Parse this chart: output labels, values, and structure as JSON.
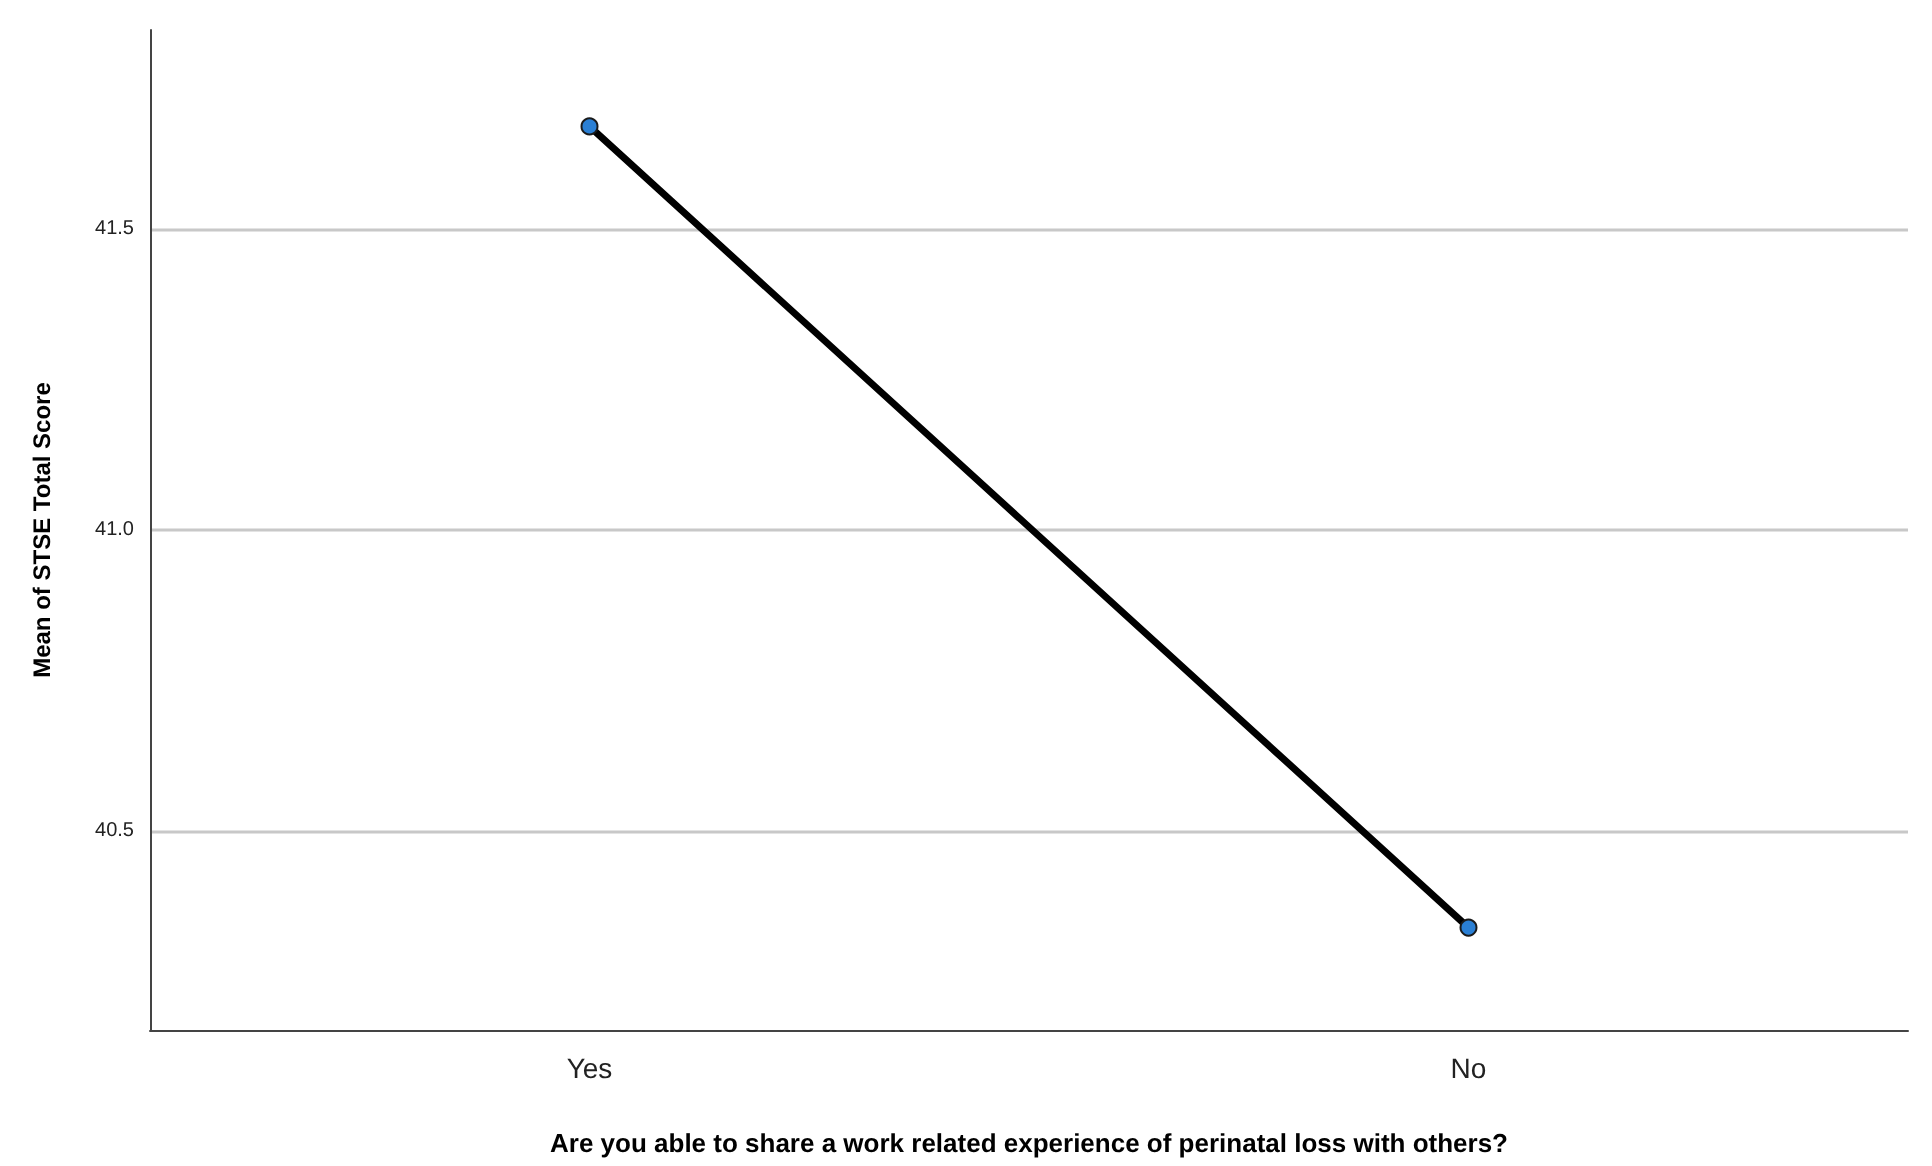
{
  "chart_data": {
    "type": "line",
    "xlabel": "Are you able to share a work related experience of perinatal loss with others?",
    "ylabel": "Mean of STSE Total Score",
    "categories": [
      "Yes",
      "No"
    ],
    "series": [
      {
        "color": "#000000",
        "colors": [
          "#2a7fd4",
          "#2a7fd4"
        ],
        "values": [
          41.67,
          40.34
        ]
      }
    ],
    "ylim": [
      40.17,
      41.83
    ],
    "yticks": [
      {
        "value": 40.5,
        "label": "40.5"
      },
      {
        "value": 41.0,
        "label": "41.0"
      },
      {
        "value": 41.5,
        "label": "41.5"
      }
    ],
    "grid": "y",
    "marker": "circle",
    "line_style": "solid"
  }
}
